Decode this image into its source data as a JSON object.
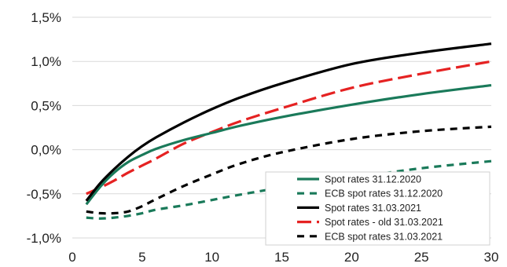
{
  "chart_data": {
    "type": "line",
    "title": "",
    "xlabel": "",
    "ylabel": "",
    "xlim": [
      0,
      30
    ],
    "ylim": [
      -1.0,
      1.5
    ],
    "x_ticks": [
      "0",
      "5",
      "10",
      "15",
      "20",
      "25",
      "30"
    ],
    "y_ticks": [
      "-1,0%",
      "-0,5%",
      "0,0%",
      "0,5%",
      "1,0%",
      "1,5%"
    ],
    "grid": true,
    "legend_position": "bottom-right",
    "series": [
      {
        "name": "Spot rates 31.12.2020",
        "color": "#1a7a5a",
        "dash": "solid",
        "x": [
          1,
          2,
          3,
          4,
          5,
          6,
          8,
          10,
          12,
          15,
          20,
          25,
          30
        ],
        "y": [
          -0.62,
          -0.42,
          -0.26,
          -0.14,
          -0.06,
          0.01,
          0.11,
          0.19,
          0.27,
          0.37,
          0.51,
          0.63,
          0.73
        ]
      },
      {
        "name": "ECB spot rates 31.12.2020",
        "color": "#1a7a5a",
        "dash": "dashed",
        "x": [
          1,
          2,
          3,
          4,
          5,
          6,
          8,
          10,
          12,
          15,
          20,
          25,
          30
        ],
        "y": [
          -0.77,
          -0.78,
          -0.77,
          -0.75,
          -0.72,
          -0.68,
          -0.63,
          -0.57,
          -0.51,
          -0.43,
          -0.32,
          -0.21,
          -0.13
        ]
      },
      {
        "name": "Spot rates 31.03.2021",
        "color": "#000000",
        "dash": "solid",
        "x": [
          1,
          2,
          3,
          4,
          5,
          6,
          8,
          10,
          12,
          15,
          20,
          25,
          30
        ],
        "y": [
          -0.58,
          -0.38,
          -0.22,
          -0.08,
          0.04,
          0.14,
          0.31,
          0.46,
          0.59,
          0.75,
          0.97,
          1.1,
          1.2
        ]
      },
      {
        "name": "Spot rates - old 31.03.2021",
        "color": "#e52222",
        "dash": "longdash",
        "x": [
          1,
          2,
          3,
          4,
          5,
          6,
          8,
          10,
          12,
          15,
          20,
          25,
          30
        ],
        "y": [
          -0.5,
          -0.43,
          -0.35,
          -0.26,
          -0.18,
          -0.1,
          0.07,
          0.2,
          0.32,
          0.47,
          0.7,
          0.86,
          1.0
        ]
      },
      {
        "name": "ECB spot rates 31.03.2021",
        "color": "#000000",
        "dash": "dashed",
        "x": [
          1,
          2,
          3,
          4,
          5,
          6,
          8,
          10,
          12,
          15,
          20,
          25,
          30
        ],
        "y": [
          -0.7,
          -0.72,
          -0.72,
          -0.7,
          -0.64,
          -0.56,
          -0.41,
          -0.28,
          -0.16,
          -0.03,
          0.12,
          0.21,
          0.26
        ]
      }
    ]
  }
}
